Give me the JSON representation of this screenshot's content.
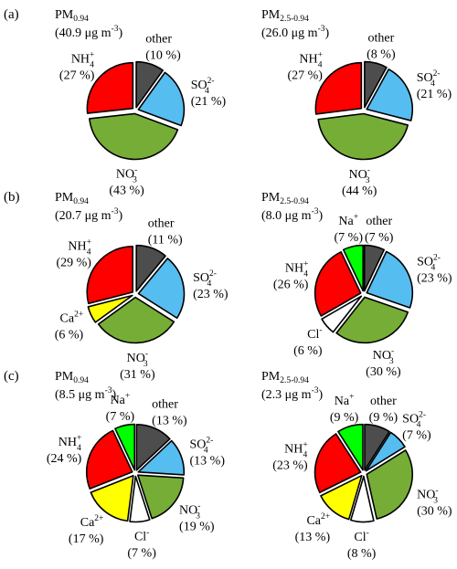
{
  "colors": {
    "other": "#4d4d4d",
    "so4": "#56bdf0",
    "no3": "#76ad36",
    "nh4": "#ff0000",
    "ca": "#ffff00",
    "cl": "#ffffff",
    "na": "#00ff00"
  },
  "chart_data": [
    {
      "type": "pie",
      "row_label": "(a)",
      "panel_title": "PM",
      "panel_title_sub": "0.94",
      "concentration_text": "(40.9 μg m",
      "concentration_sup": "-3",
      "concentration_end": ")",
      "slices": [
        {
          "key": "other",
          "main": "other",
          "sub": "",
          "sup": "",
          "pct": 10,
          "pct_text": "(10 %)"
        },
        {
          "key": "so4",
          "main": "SO",
          "sub": "4",
          "sup": "2-",
          "pct": 21,
          "pct_text": "(21 %)"
        },
        {
          "key": "no3",
          "main": "NO",
          "sub": "3",
          "sup": "-",
          "pct": 43,
          "pct_text": "(43 %)"
        },
        {
          "key": "nh4",
          "main": "NH",
          "sub": "4",
          "sup": "+",
          "pct": 27,
          "pct_text": "(27 %)"
        }
      ]
    },
    {
      "type": "pie",
      "row_label": "",
      "panel_title": "PM",
      "panel_title_sub": "2.5-0.94",
      "concentration_text": "(26.0 μg m",
      "concentration_sup": "-3",
      "concentration_end": ")",
      "slices": [
        {
          "key": "other",
          "main": "other",
          "sub": "",
          "sup": "",
          "pct": 8,
          "pct_text": "(8 %)"
        },
        {
          "key": "so4",
          "main": "SO",
          "sub": "4",
          "sup": "2-",
          "pct": 21,
          "pct_text": "(21 %)"
        },
        {
          "key": "no3",
          "main": "NO",
          "sub": "3",
          "sup": "-",
          "pct": 44,
          "pct_text": "(44 %)"
        },
        {
          "key": "nh4",
          "main": "NH",
          "sub": "4",
          "sup": "+",
          "pct": 27,
          "pct_text": "(27 %)"
        }
      ]
    },
    {
      "type": "pie",
      "row_label": "(b)",
      "panel_title": "PM",
      "panel_title_sub": "0.94",
      "concentration_text": "(20.7 μg m",
      "concentration_sup": "-3",
      "concentration_end": ")",
      "slices": [
        {
          "key": "other",
          "main": "other",
          "sub": "",
          "sup": "",
          "pct": 11,
          "pct_text": "(11 %)"
        },
        {
          "key": "so4",
          "main": "SO",
          "sub": "4",
          "sup": "2-",
          "pct": 23,
          "pct_text": "(23 %)"
        },
        {
          "key": "no3",
          "main": "NO",
          "sub": "3",
          "sup": "-",
          "pct": 31,
          "pct_text": "(31 %)"
        },
        {
          "key": "ca",
          "main": "Ca",
          "sub": "",
          "sup": "2+",
          "pct": 6,
          "pct_text": "(6 %)"
        },
        {
          "key": "nh4",
          "main": "NH",
          "sub": "4",
          "sup": "+",
          "pct": 29,
          "pct_text": "(29 %)"
        }
      ]
    },
    {
      "type": "pie",
      "row_label": "",
      "panel_title": "PM",
      "panel_title_sub": "2.5-0.94",
      "concentration_text": "(8.0 μg m",
      "concentration_sup": "-3",
      "concentration_end": ")",
      "slices": [
        {
          "key": "other",
          "main": "other",
          "sub": "",
          "sup": "",
          "pct": 7,
          "pct_text": "(7 %)"
        },
        {
          "key": "so4",
          "main": "SO",
          "sub": "4",
          "sup": "2-",
          "pct": 23,
          "pct_text": "(23 %)"
        },
        {
          "key": "no3",
          "main": "NO",
          "sub": "3",
          "sup": "-",
          "pct": 30,
          "pct_text": "(30 %)"
        },
        {
          "key": "cl",
          "main": "Cl",
          "sub": "",
          "sup": "-",
          "pct": 6,
          "pct_text": "(6 %)"
        },
        {
          "key": "nh4",
          "main": "NH",
          "sub": "4",
          "sup": "+",
          "pct": 26,
          "pct_text": "(26 %)"
        },
        {
          "key": "na",
          "main": "Na",
          "sub": "",
          "sup": "+",
          "pct": 7,
          "pct_text": "(7 %)"
        }
      ]
    },
    {
      "type": "pie",
      "row_label": "(c)",
      "panel_title": "PM",
      "panel_title_sub": "0.94",
      "concentration_text": "(8.5 μg m",
      "concentration_sup": "-3",
      "concentration_end": ")",
      "slices": [
        {
          "key": "other",
          "main": "other",
          "sub": "",
          "sup": "",
          "pct": 13,
          "pct_text": "(13 %)"
        },
        {
          "key": "so4",
          "main": "SO",
          "sub": "4",
          "sup": "2-",
          "pct": 13,
          "pct_text": "(13 %)"
        },
        {
          "key": "no3",
          "main": "NO",
          "sub": "3",
          "sup": "-",
          "pct": 19,
          "pct_text": "(19 %)"
        },
        {
          "key": "cl",
          "main": "Cl",
          "sub": "",
          "sup": "-",
          "pct": 7,
          "pct_text": "(7 %)"
        },
        {
          "key": "ca",
          "main": "Ca",
          "sub": "",
          "sup": "2+",
          "pct": 17,
          "pct_text": "(17 %)"
        },
        {
          "key": "nh4",
          "main": "NH",
          "sub": "4",
          "sup": "+",
          "pct": 24,
          "pct_text": "(24 %)"
        },
        {
          "key": "na",
          "main": "Na",
          "sub": "",
          "sup": "+",
          "pct": 7,
          "pct_text": "(7 %)"
        }
      ]
    },
    {
      "type": "pie",
      "row_label": "",
      "panel_title": "PM",
      "panel_title_sub": "2.5-0.94",
      "concentration_text": "(2.3 μg m",
      "concentration_sup": "-3",
      "concentration_end": ")",
      "slices": [
        {
          "key": "other",
          "main": "other",
          "sub": "",
          "sup": "",
          "pct": 9,
          "pct_text": "(9 %)"
        },
        {
          "key": "so4",
          "main": "SO",
          "sub": "4",
          "sup": "2-",
          "pct": 7,
          "pct_text": "(7 %)"
        },
        {
          "key": "no3",
          "main": "NO",
          "sub": "3",
          "sup": "-",
          "pct": 30,
          "pct_text": "(30 %)"
        },
        {
          "key": "cl",
          "main": "Cl",
          "sub": "",
          "sup": "-",
          "pct": 8,
          "pct_text": "(8 %)"
        },
        {
          "key": "ca",
          "main": "Ca",
          "sub": "",
          "sup": "2+",
          "pct": 13,
          "pct_text": "(13 %)"
        },
        {
          "key": "nh4",
          "main": "NH",
          "sub": "4",
          "sup": "+",
          "pct": 23,
          "pct_text": "(23 %)"
        },
        {
          "key": "na",
          "main": "Na",
          "sub": "",
          "sup": "+",
          "pct": 9,
          "pct_text": "(9 %)"
        }
      ]
    }
  ]
}
